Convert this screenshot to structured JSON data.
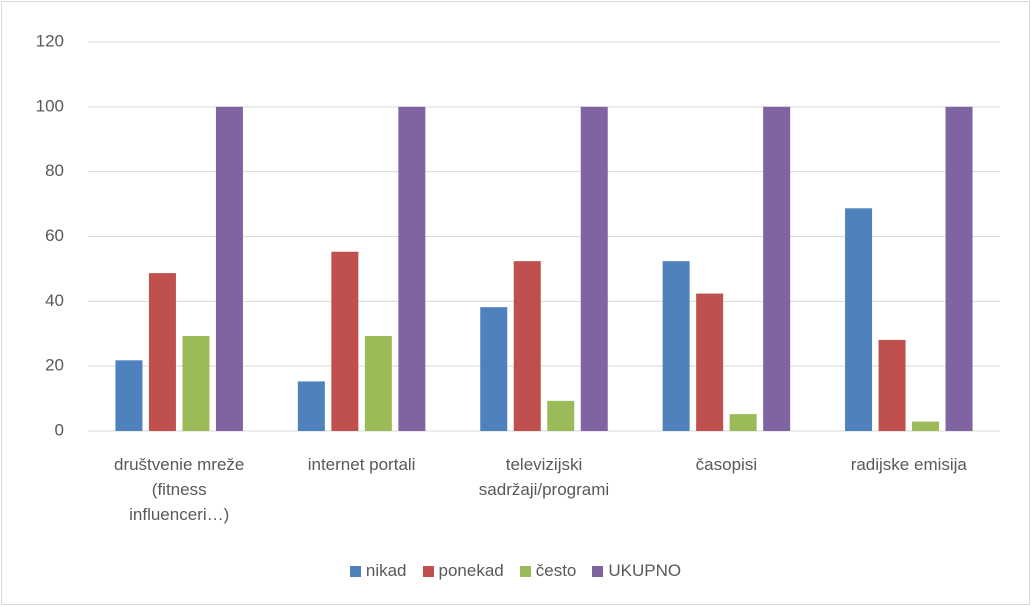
{
  "chart_data": {
    "type": "bar",
    "categories": [
      "društvenie mreže (fitness influenceri…)",
      "internet portali",
      "televizijski sadržaji/programi",
      "časopisi",
      "radijske emisija"
    ],
    "series": [
      {
        "name": "nikad",
        "color": "#4f81bd",
        "values": [
          21.8,
          15.3,
          38.2,
          52.4,
          68.7
        ]
      },
      {
        "name": "ponekad",
        "color": "#c0504d",
        "values": [
          48.7,
          55.3,
          52.4,
          42.4,
          28.1
        ]
      },
      {
        "name": "često",
        "color": "#9bbb59",
        "values": [
          29.3,
          29.3,
          9.3,
          5.2,
          2.9
        ]
      },
      {
        "name": "UKUPNO",
        "color": "#8064a2",
        "values": [
          100,
          100,
          100,
          100,
          100
        ]
      }
    ],
    "ylim": [
      0,
      120
    ],
    "yticks": [
      0,
      20,
      40,
      60,
      80,
      100,
      120
    ],
    "grid": true,
    "legend": "bottom"
  }
}
